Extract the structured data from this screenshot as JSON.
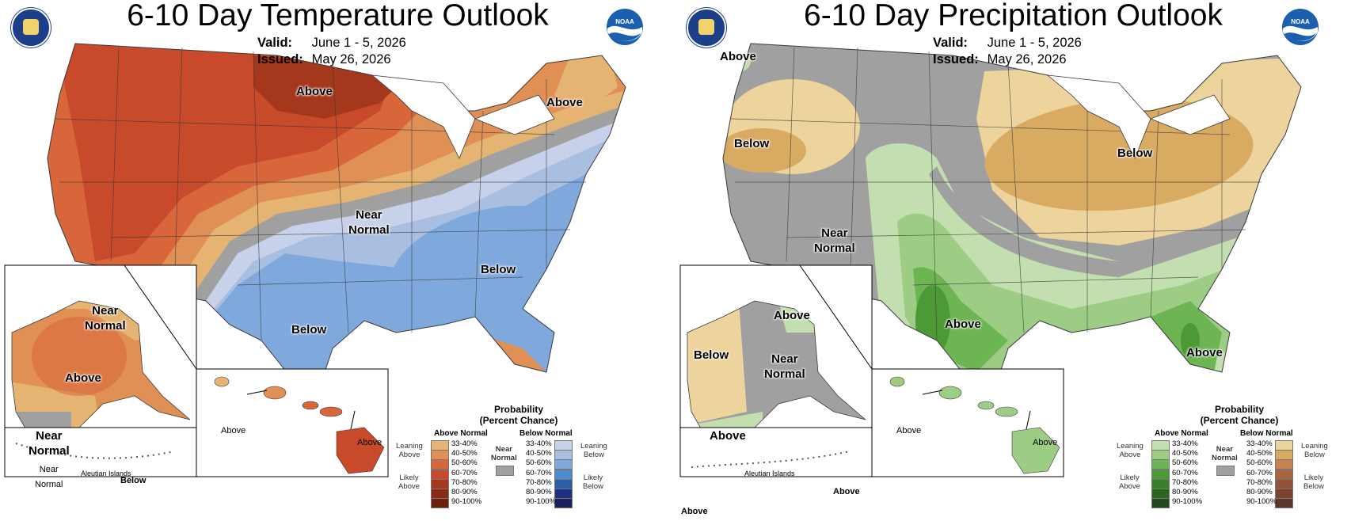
{
  "temperature": {
    "title": "6-10 Day Temperature Outlook",
    "valid_label": "Valid:",
    "valid_value": "June 1 - 5, 2026",
    "issued_label": "Issued:",
    "issued_value": "May 26, 2026",
    "regions": {
      "north_central": "Above",
      "northeast": "Above",
      "center_near": "Near\nNormal",
      "southeast": "Below",
      "texas": "Below",
      "alaska_near_top": "Near\nNormal",
      "alaska_main": "Above",
      "alaska_near_bottom": "Near\nNormal",
      "aleutian_near": "Near\nNormal",
      "aleutian_title": "Aleutian Islands",
      "aleutian_below": "Below",
      "hawaii_west": "Above",
      "hawaii_east": "Above"
    },
    "legend": {
      "title": "Probability\n(Percent Chance)",
      "above_header": "Above Normal",
      "below_header": "Below Normal",
      "near_normal": "Near\nNormal",
      "leaning_above": "Leaning\nAbove",
      "likely_above": "Likely\nAbove",
      "leaning_below": "Leaning\nBelow",
      "likely_below": "Likely\nBelow",
      "bins": [
        "33-40%",
        "40-50%",
        "50-60%",
        "60-70%",
        "70-80%",
        "80-90%",
        "90-100%"
      ],
      "above_colors": [
        "#e6b472",
        "#e08f55",
        "#d9663b",
        "#c84a2b",
        "#a5381c",
        "#8a2a12",
        "#6b1e0c"
      ],
      "below_colors": [
        "#c8d1ea",
        "#a9bfe2",
        "#7fa9dc",
        "#4c8bd0",
        "#2a5fa8",
        "#1e2f84",
        "#1c1f5e"
      ],
      "near_color": "#a0a0a0"
    }
  },
  "precipitation": {
    "title": "6-10 Day Precipitation Outlook",
    "valid_label": "Valid:",
    "valid_value": "June 1 - 5, 2026",
    "issued_label": "Issued:",
    "issued_value": "May 26, 2026",
    "regions": {
      "northwest_above": "Above",
      "northwest_below": "Below",
      "west_near": "Near\nNormal",
      "great_lakes_below": "Below",
      "southern_plains_above": "Above",
      "florida_above": "Above",
      "alaska_above": "Above",
      "alaska_below": "Below",
      "alaska_near": "Near\nNormal",
      "alaska_above_south": "Above",
      "aleutian_title": "Aleutian Islands",
      "aleutian_above_east": "Above",
      "aleutian_above_west": "Above",
      "hawaii_west": "Above",
      "hawaii_east": "Above"
    },
    "legend": {
      "title": "Probability\n(Percent Chance)",
      "above_header": "Above Normal",
      "below_header": "Below Normal",
      "near_normal": "Near\nNormal",
      "leaning_above": "Leaning\nAbove",
      "likely_above": "Likely\nAbove",
      "leaning_below": "Leaning\nBelow",
      "likely_below": "Likely\nBelow",
      "bins": [
        "33-40%",
        "40-50%",
        "50-60%",
        "60-70%",
        "70-80%",
        "80-90%",
        "90-100%"
      ],
      "above_colors": [
        "#c3dfb0",
        "#9dcd85",
        "#6db552",
        "#4c9a36",
        "#3a7f29",
        "#2d6420",
        "#22491a"
      ],
      "below_colors": [
        "#ecd49c",
        "#d9aa62",
        "#c58450",
        "#a8633f",
        "#935237",
        "#7e4330",
        "#5a3729"
      ],
      "near_color": "#a0a0a0"
    }
  },
  "colors": {
    "state_lines": "#3a3a3a",
    "water": "#ffffff"
  }
}
